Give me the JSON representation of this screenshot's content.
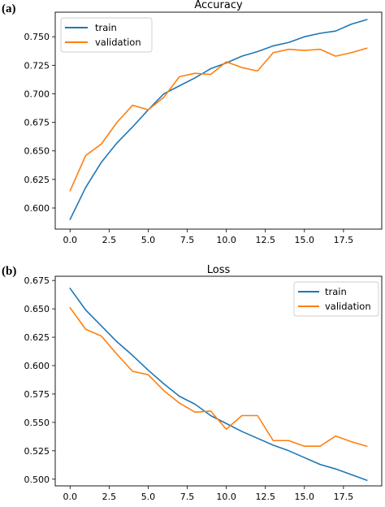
{
  "chart_data": [
    {
      "panel_label": "(a)",
      "type": "line",
      "title": "Accuracy",
      "xlabel": "",
      "ylabel": "",
      "x": [
        0,
        1,
        2,
        3,
        4,
        5,
        6,
        7,
        8,
        9,
        10,
        11,
        12,
        13,
        14,
        15,
        16,
        17,
        18,
        19
      ],
      "xlim": [
        -0.95,
        19.95
      ],
      "ylim": [
        0.5815,
        0.7715
      ],
      "xticks": [
        0.0,
        2.5,
        5.0,
        7.5,
        10.0,
        12.5,
        15.0,
        17.5
      ],
      "xtick_labels": [
        "0.0",
        "2.5",
        "5.0",
        "7.5",
        "10.0",
        "12.5",
        "15.0",
        "17.5"
      ],
      "yticks": [
        0.6,
        0.625,
        0.65,
        0.675,
        0.7,
        0.725,
        0.75
      ],
      "ytick_labels": [
        "0.600",
        "0.625",
        "0.650",
        "0.675",
        "0.700",
        "0.725",
        "0.750"
      ],
      "legend_position": "upper-left",
      "grid": false,
      "series": [
        {
          "name": "train",
          "color": "#1f77b4",
          "values": [
            0.59,
            0.618,
            0.64,
            0.657,
            0.671,
            0.686,
            0.7,
            0.707,
            0.714,
            0.722,
            0.727,
            0.733,
            0.737,
            0.742,
            0.745,
            0.75,
            0.753,
            0.755,
            0.761,
            0.765
          ]
        },
        {
          "name": "validation",
          "color": "#ff7f0e",
          "values": [
            0.615,
            0.646,
            0.656,
            0.675,
            0.69,
            0.686,
            0.697,
            0.715,
            0.718,
            0.717,
            0.728,
            0.723,
            0.72,
            0.736,
            0.739,
            0.738,
            0.739,
            0.733,
            0.736,
            0.74
          ]
        }
      ]
    },
    {
      "panel_label": "(b)",
      "type": "line",
      "title": "Loss",
      "xlabel": "",
      "ylabel": "",
      "x": [
        0,
        1,
        2,
        3,
        4,
        5,
        6,
        7,
        8,
        9,
        10,
        11,
        12,
        13,
        14,
        15,
        16,
        17,
        18,
        19
      ],
      "xlim": [
        -0.95,
        19.95
      ],
      "ylim": [
        0.4941,
        0.6787
      ],
      "xticks": [
        0.0,
        2.5,
        5.0,
        7.5,
        10.0,
        12.5,
        15.0,
        17.5
      ],
      "xtick_labels": [
        "0.0",
        "2.5",
        "5.0",
        "7.5",
        "10.0",
        "12.5",
        "15.0",
        "17.5"
      ],
      "yticks": [
        0.5,
        0.525,
        0.55,
        0.575,
        0.6,
        0.625,
        0.65,
        0.675
      ],
      "ytick_labels": [
        "0.500",
        "0.525",
        "0.550",
        "0.575",
        "0.600",
        "0.625",
        "0.650",
        "0.675"
      ],
      "legend_position": "upper-right",
      "grid": false,
      "series": [
        {
          "name": "train",
          "color": "#1f77b4",
          "values": [
            0.668,
            0.649,
            0.635,
            0.621,
            0.609,
            0.596,
            0.584,
            0.573,
            0.566,
            0.556,
            0.549,
            0.542,
            0.536,
            0.53,
            0.525,
            0.519,
            0.513,
            0.509,
            0.504,
            0.499
          ]
        },
        {
          "name": "validation",
          "color": "#ff7f0e",
          "values": [
            0.651,
            0.632,
            0.626,
            0.61,
            0.595,
            0.592,
            0.578,
            0.567,
            0.559,
            0.56,
            0.544,
            0.556,
            0.556,
            0.534,
            0.534,
            0.529,
            0.529,
            0.538,
            0.533,
            0.529
          ]
        }
      ]
    }
  ]
}
